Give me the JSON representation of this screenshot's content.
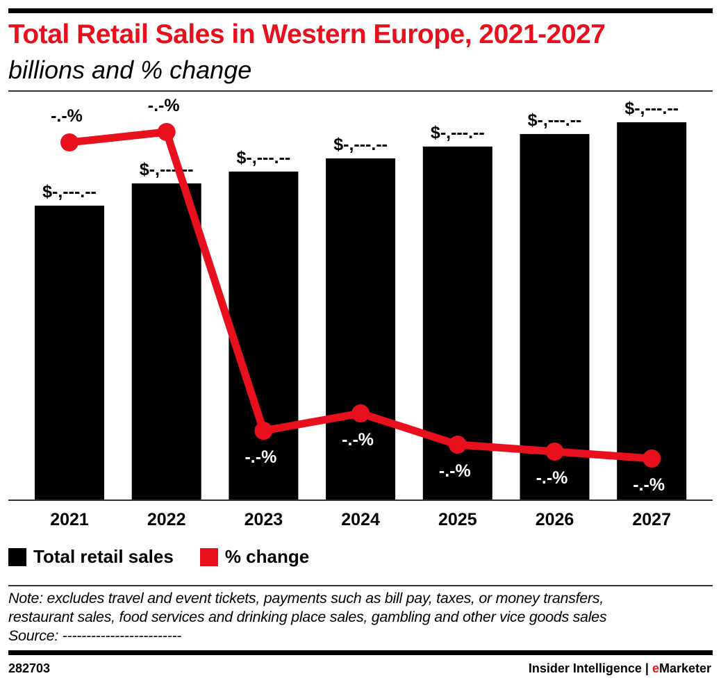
{
  "title": "Total Retail Sales in Western Europe, 2021-2027",
  "subtitle": "billions and % change",
  "chart_data": {
    "type": "bar",
    "title": "Total Retail Sales in Western Europe, 2021-2027",
    "subtitle": "billions and % change",
    "categories": [
      "2021",
      "2022",
      "2023",
      "2024",
      "2025",
      "2026",
      "2027"
    ],
    "series": [
      {
        "name": "Total retail sales",
        "type": "bar",
        "color": "#000000",
        "values": [
          2756,
          2964,
          3075,
          3198,
          3309,
          3426,
          3536
        ],
        "labels": [
          "$-,---.--",
          "$-,---.--",
          "$-,---.--",
          "$-,---.--",
          "$-,---.--",
          "$-,---.--",
          "$-,---.--"
        ]
      },
      {
        "name": "% change",
        "type": "line",
        "color": "#e8101c",
        "values": [
          9.9,
          10.2,
          1.6,
          2.1,
          1.2,
          1.0,
          0.8
        ],
        "labels": [
          "-.-%",
          "-.-%",
          "-.-%",
          "-.-%",
          "-.-%",
          "-.-%",
          "-.-%"
        ]
      }
    ],
    "xlabel": "",
    "ylabel": "",
    "grid": false,
    "legend": "bottom-left"
  },
  "legend": [
    {
      "label": "Total retail sales",
      "color": "#000000"
    },
    {
      "label": "% change",
      "color": "#e8101c"
    }
  ],
  "note": [
    "Note: excludes travel and event tickets, payments such as bill pay, taxes, or money transfers,",
    "restaurant sales, food services and drinking place sales, gambling and other vice goods sales"
  ],
  "source": "Source: -------------------------",
  "footer": {
    "id": "282703",
    "brand_left": "Insider Intelligence | ",
    "brand_e": "e",
    "brand_right": "Marketer"
  }
}
